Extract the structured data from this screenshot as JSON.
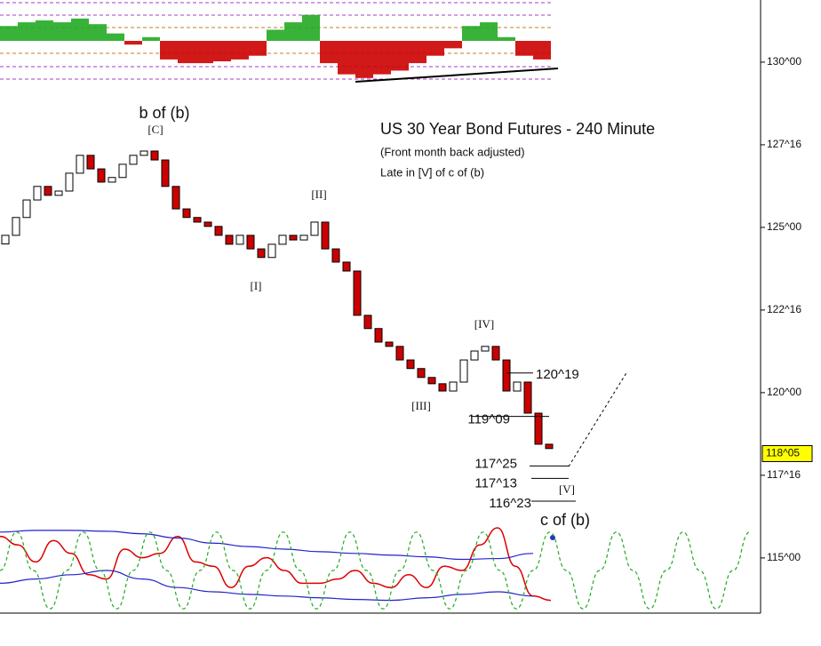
{
  "chart_data": [
    {
      "type": "candlestick",
      "title": "US 30 Year Bond Futures - 240 Minute",
      "subtitle": [
        "(Front month back adjusted)",
        "Late in [V] of c of (b)"
      ],
      "open": [
        124.5,
        124.76,
        125.3,
        125.83,
        126.24,
        125.97,
        126.1,
        126.64,
        127.18,
        126.77,
        126.37,
        126.51,
        126.91,
        127.18,
        127.31,
        127.04,
        126.24,
        125.56,
        125.3,
        125.16,
        125.03,
        124.76,
        124.49,
        124.76,
        124.35,
        124.09,
        124.49,
        124.76,
        124.62,
        124.76,
        125.16,
        124.35,
        123.95,
        123.68,
        122.34,
        121.94,
        121.53,
        121.4,
        120.99,
        120.73,
        120.46,
        120.27,
        120.05,
        120.32,
        120.99,
        121.26,
        121.4,
        120.99,
        120.05,
        120.32,
        119.38,
        118.44
      ],
      "close": [
        124.76,
        125.3,
        125.83,
        126.24,
        125.97,
        126.1,
        126.64,
        127.18,
        126.77,
        126.37,
        126.51,
        126.91,
        127.18,
        127.31,
        127.04,
        126.24,
        125.56,
        125.3,
        125.16,
        125.03,
        124.76,
        124.49,
        124.76,
        124.35,
        124.09,
        124.49,
        124.76,
        124.62,
        124.76,
        125.16,
        124.35,
        123.95,
        123.68,
        122.34,
        121.94,
        121.53,
        121.4,
        120.99,
        120.73,
        120.46,
        120.27,
        120.05,
        120.32,
        120.99,
        121.26,
        121.4,
        120.99,
        120.05,
        120.32,
        119.38,
        118.44,
        118.31
      ],
      "up_color": "#ffffff",
      "down_color": "#cc0000",
      "ylim": [
        113.33,
        131.88
      ],
      "yticks": [
        {
          "value": 130,
          "label": "130^00"
        },
        {
          "value": 127.5,
          "label": "127^16"
        },
        {
          "value": 125,
          "label": "125^00"
        },
        {
          "value": 122.5,
          "label": "122^16"
        },
        {
          "value": 120,
          "label": "120^00"
        },
        {
          "value": 117.5,
          "label": "117^16"
        },
        {
          "value": 115,
          "label": "115^00"
        }
      ],
      "last_price": {
        "value": 118.15625,
        "label": "118^05"
      },
      "levels": [
        {
          "value": 120.59375,
          "label": "120^19"
        },
        {
          "value": 119.28125,
          "label": "119^09"
        },
        {
          "value": 117.78125,
          "label": "117^25"
        },
        {
          "value": 117.40625,
          "label": "117^13"
        },
        {
          "value": 116.71875,
          "label": "116^23"
        }
      ],
      "wave_labels": [
        "b of (b)",
        "[C]",
        "[II]",
        "[I]",
        "[IV]",
        "[III]",
        "[V]",
        "c of (b)"
      ]
    },
    {
      "type": "bar",
      "values": [
        0.4,
        0.5,
        0.55,
        0.5,
        0.6,
        0.45,
        0.2,
        -0.1,
        0.1,
        -0.5,
        -0.6,
        -0.6,
        -0.55,
        -0.5,
        -0.4,
        0.3,
        0.5,
        0.7,
        -0.6,
        -0.9,
        -1.0,
        -0.9,
        -0.8,
        -0.6,
        -0.4,
        -0.2,
        0.4,
        0.5,
        0.1,
        -0.4,
        -0.5
      ],
      "up_color": "#22aa22",
      "down_color": "#cc0000",
      "ylim": [
        -1.1,
        1.1
      ]
    },
    {
      "type": "line",
      "ylim": [
        0,
        100
      ],
      "series": [
        {
          "color": "#dd0000",
          "values": [
            90,
            80,
            60,
            85,
            70,
            45,
            40,
            75,
            65,
            70,
            90,
            60,
            55,
            30,
            55,
            65,
            50,
            35,
            35,
            40,
            50,
            35,
            30,
            45,
            30,
            55,
            50,
            80,
            100,
            55,
            20,
            15
          ]
        },
        {
          "color": "#2222cc",
          "values": [
            95,
            97,
            97,
            96,
            93,
            88,
            82,
            78,
            75,
            72,
            70,
            68,
            66,
            63,
            64,
            70
          ]
        },
        {
          "color": "#2222cc",
          "values": [
            35,
            40,
            45,
            50,
            40,
            30,
            25,
            22,
            20,
            18,
            16,
            15,
            18,
            22,
            25,
            20
          ]
        },
        {
          "color": "#22aa22",
          "values": [
            50,
            95,
            50,
            5,
            50,
            95,
            50,
            5,
            50,
            95,
            50,
            5,
            50,
            95,
            50,
            5,
            50,
            95,
            50,
            5,
            50,
            95,
            50,
            5,
            50,
            95,
            50,
            5,
            50,
            95,
            50,
            5,
            50,
            95,
            50,
            5,
            50,
            95,
            50,
            5,
            50,
            95,
            50,
            5,
            50,
            95
          ]
        }
      ]
    }
  ]
}
